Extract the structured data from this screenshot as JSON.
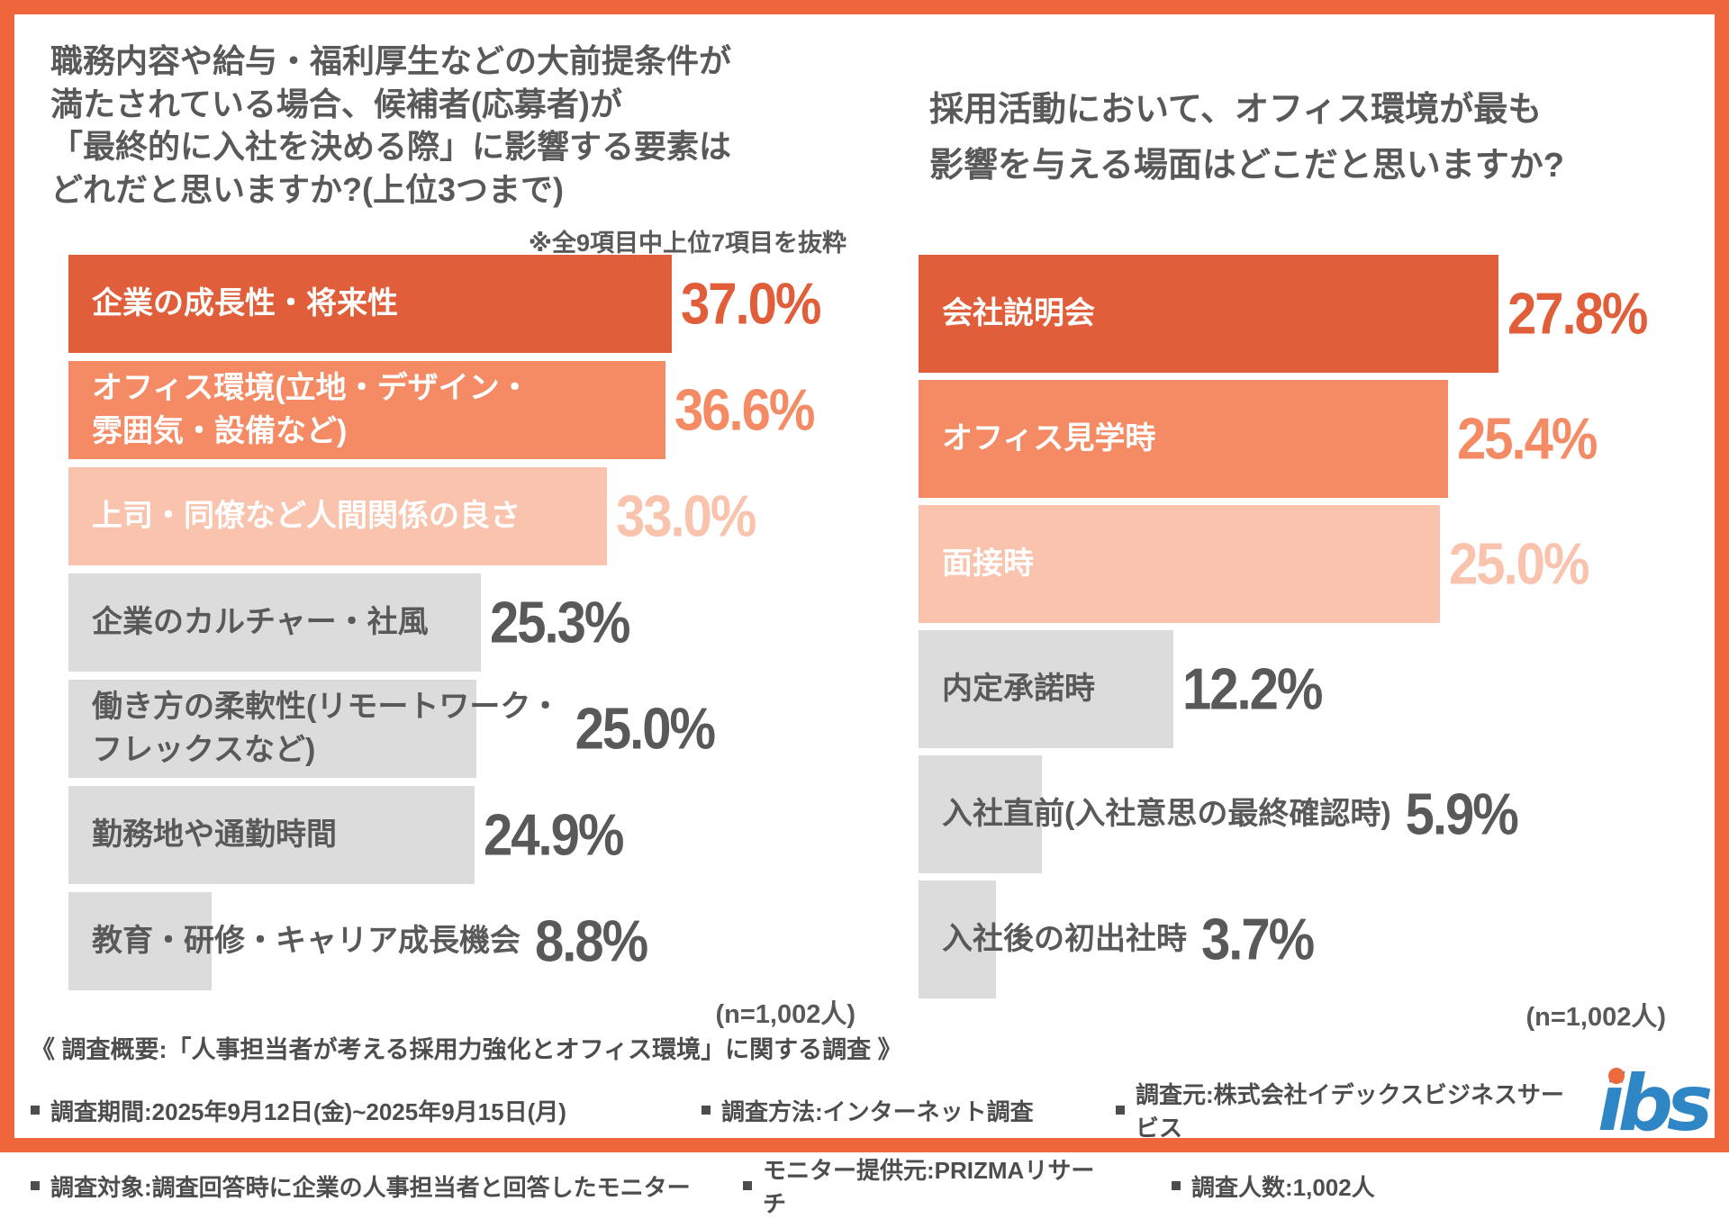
{
  "page": {
    "background": "#FFFFFF",
    "frame_color": "#EF663C"
  },
  "colors": {
    "top": {
      "bar": "#E05F3A",
      "label": "#FFFFFF",
      "pct": "#E05F3A"
    },
    "second": {
      "bar": "#F48B64",
      "label": "#FFFFFF",
      "pct": "#F48B64"
    },
    "third": {
      "bar": "#FAC3AD",
      "label": "#FFFFFF",
      "pct": "#FAC3AD"
    },
    "gray": {
      "bar": "#DCDCDC",
      "label": "#595959",
      "pct": "#595959"
    }
  },
  "chart_data": [
    {
      "type": "bar",
      "orientation": "horizontal",
      "title": "職務内容や給与・福利厚生などの大前提条件が\n満たされている場合、候補者(応募者)が\n「最終的に入社を決める際」に影響する要素は\nどれだと思いますか?(上位3つまで)",
      "note": "※全9項目中上位7項目を抜粋",
      "sample_label": "(n=1,002人)",
      "categories": [
        "企業の成長性・将来性",
        "オフィス環境(立地・デザイン・雰囲気・設備など)",
        "上司・同僚など人間関係の良さ",
        "企業のカルチャー・社風",
        "働き方の柔軟性(リモートワーク・フレックスなど)",
        "勤務地や通勤時間",
        "教育・研修・キャリア成長機会"
      ],
      "labels_wrapped": [
        "企業の成長性・将来性",
        "オフィス環境(立地・デザイン・\n雰囲気・設備など)",
        "上司・同僚など人間関係の良さ",
        "企業のカルチャー・社風",
        "働き方の柔軟性(リモートワーク・\nフレックスなど)",
        "勤務地や通勤時間",
        "教育・研修・キャリア成長機会"
      ],
      "values": [
        37.0,
        36.6,
        33.0,
        25.3,
        25.0,
        24.9,
        8.8
      ],
      "value_labels": [
        "37.0%",
        "36.6%",
        "33.0%",
        "25.3%",
        "25.0%",
        "24.9%",
        "8.8%"
      ],
      "tones": [
        "top",
        "second",
        "third",
        "gray",
        "gray",
        "gray",
        "gray"
      ],
      "xlim": [
        0,
        37.0
      ],
      "grid": false,
      "legend": false
    },
    {
      "type": "bar",
      "orientation": "horizontal",
      "title": "採用活動において、オフィス環境が最も\n影響を与える場面はどこだと思いますか?",
      "note": "",
      "sample_label": "(n=1,002人)",
      "categories": [
        "会社説明会",
        "オフィス見学時",
        "面接時",
        "内定承諾時",
        "入社直前(入社意思の最終確認時)",
        "入社後の初出社時"
      ],
      "labels_wrapped": [
        "会社説明会",
        "オフィス見学時",
        "面接時",
        "内定承諾時",
        "入社直前(入社意思の最終確認時)",
        "入社後の初出社時"
      ],
      "values": [
        27.8,
        25.4,
        25.0,
        12.2,
        5.9,
        3.7
      ],
      "value_labels": [
        "27.8%",
        "25.4%",
        "25.0%",
        "12.2%",
        "5.9%",
        "3.7%"
      ],
      "tones": [
        "top",
        "second",
        "third",
        "gray",
        "gray",
        "gray"
      ],
      "xlim": [
        0,
        27.8
      ],
      "grid": false,
      "legend": false
    }
  ],
  "footer": {
    "heading": "《 調査概要:「人事担当者が考える採用力強化とオフィス環境」に関する調査 》",
    "items": [
      "調査期間:2025年9月12日(金)~2025年9月15日(月)",
      "調査方法:インターネット調査",
      "調査元:株式会社イデックスビジネスサービス",
      "調査対象:調査回答時に企業の人事担当者と回答したモニター",
      "モニター提供元:PRIZMAリサーチ",
      "調査人数:1,002人"
    ]
  },
  "logo": {
    "text": "ibs",
    "blue": "#2E86C4",
    "dot_orange": "#EE6A3C"
  }
}
